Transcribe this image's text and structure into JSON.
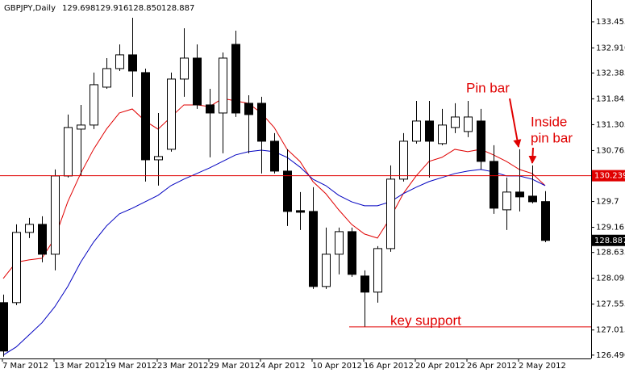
{
  "chart_data": {
    "type": "candlestick",
    "header": {
      "symbol": "GBPJPY,Daily",
      "ohlc": [
        "129.698",
        "129.916",
        "128.850",
        "128.887"
      ]
    },
    "categories": [
      "7 Mar 2012",
      null,
      null,
      null,
      "13 Mar 2012",
      null,
      null,
      null,
      "19 Mar 2012",
      null,
      null,
      null,
      "23 Mar 2012",
      null,
      null,
      null,
      "29 Mar 2012",
      null,
      null,
      null,
      "4 Apr 2012",
      null,
      null,
      null,
      "10 Apr 2012",
      null,
      null,
      null,
      "16 Apr 2012",
      null,
      null,
      null,
      "20 Apr 2012",
      null,
      null,
      null,
      "26 Apr 2012",
      null,
      null,
      null,
      "2 May 2012",
      null,
      null
    ],
    "open": [
      127.587,
      127.587,
      129.054,
      129.222,
      128.598,
      130.234,
      131.212,
      131.297,
      132.089,
      132.477,
      132.764,
      132.393,
      130.571,
      130.791,
      132.258,
      132.696,
      131.718,
      131.549,
      132.983,
      131.752,
      131.752,
      130.959,
      130.335,
      129.509,
      129.492,
      127.924,
      128.598,
      129.07,
      128.143,
      127.806,
      128.716,
      130.167,
      130.959,
      131.381,
      130.909,
      131.246,
      131.162,
      131.381,
      130.538,
      129.526,
      129.897,
      129.812,
      129.698
    ],
    "high": [
      127.755,
      129.222,
      129.357,
      129.391,
      130.369,
      131.516,
      131.718,
      132.393,
      132.696,
      132.983,
      133.539,
      132.477,
      131.549,
      132.393,
      133.32,
      132.983,
      132.055,
      132.814,
      133.27,
      131.92,
      131.887,
      131.128,
      130.791,
      129.897,
      129.998,
      129.155,
      129.155,
      129.155,
      128.261,
      128.767,
      130.453,
      131.128,
      131.802,
      131.802,
      131.634,
      131.752,
      131.802,
      131.634,
      130.875,
      130.2,
      130.791,
      130.453,
      129.916
    ],
    "low": [
      126.457,
      127.536,
      128.936,
      128.43,
      128.261,
      130.2,
      130.234,
      131.212,
      132.055,
      132.426,
      131.887,
      130.116,
      130.032,
      130.74,
      131.887,
      131.634,
      130.622,
      130.706,
      131.465,
      130.706,
      130.285,
      130.285,
      129.189,
      129.104,
      127.873,
      127.873,
      128.177,
      128.126,
      127.081,
      127.587,
      128.649,
      130.116,
      130.909,
      130.2,
      130.875,
      131.128,
      131.044,
      130.369,
      129.441,
      129.104,
      129.492,
      129.661,
      128.85
    ],
    "close": [
      126.575,
      129.054,
      129.222,
      128.598,
      130.234,
      131.246,
      131.297,
      132.14,
      132.477,
      132.764,
      132.426,
      130.571,
      130.639,
      132.258,
      132.696,
      131.718,
      131.549,
      132.696,
      131.549,
      131.516,
      130.959,
      130.335,
      129.492,
      129.475,
      127.924,
      128.598,
      129.07,
      128.177,
      127.806,
      128.716,
      130.167,
      130.959,
      131.381,
      130.959,
      131.297,
      131.465,
      131.465,
      130.538,
      129.56,
      129.897,
      129.796,
      129.694,
      128.887
    ],
    "lines": [
      {
        "color": "#e00000",
        "values": [
          128.092,
          128.43,
          128.48,
          128.514,
          128.935,
          129.694,
          130.284,
          130.79,
          131.212,
          131.549,
          131.633,
          131.381,
          131.212,
          131.465,
          131.718,
          131.718,
          131.684,
          131.853,
          131.802,
          131.752,
          131.549,
          131.246,
          130.79,
          130.537,
          130.116,
          129.863,
          129.526,
          129.222,
          129.02,
          128.935,
          129.357,
          129.863,
          130.234,
          130.537,
          130.622,
          130.79,
          130.74,
          130.79,
          130.672,
          130.537,
          130.369,
          130.284,
          130.032
        ]
      },
      {
        "color": "#0000c0",
        "values": [
          126.49,
          126.659,
          126.912,
          127.165,
          127.502,
          127.924,
          128.43,
          128.851,
          129.188,
          129.441,
          129.559,
          129.694,
          129.829,
          130.032,
          130.166,
          130.284,
          130.402,
          130.537,
          130.672,
          130.74,
          130.773,
          130.74,
          130.622,
          130.419,
          130.166,
          130.032,
          129.829,
          129.694,
          129.61,
          129.61,
          129.694,
          129.863,
          129.998,
          130.116,
          130.2,
          130.284,
          130.335,
          130.369,
          130.318,
          130.234,
          130.234,
          130.166,
          130.032
        ]
      }
    ],
    "price_line": 130.239,
    "support_level": 127.081,
    "annotations": {
      "pin_bar": "Pin bar",
      "inside": [
        "Inside",
        "pin bar"
      ],
      "support": "key support"
    },
    "ylim": [
      126.42,
      133.91
    ],
    "yticks": [
      133.455,
      {
        "value": 132.91,
        "label": "132.910"
      },
      132.385,
      131.845,
      131.305,
      130.765,
      129.7,
      129.16,
      128.635,
      128.095,
      127.555,
      127.015,
      {
        "value": 126.49,
        "label": "126.490"
      }
    ],
    "bull_color": "#ffffff",
    "bear_color": "#000000",
    "annotation_color": "#e00000"
  }
}
